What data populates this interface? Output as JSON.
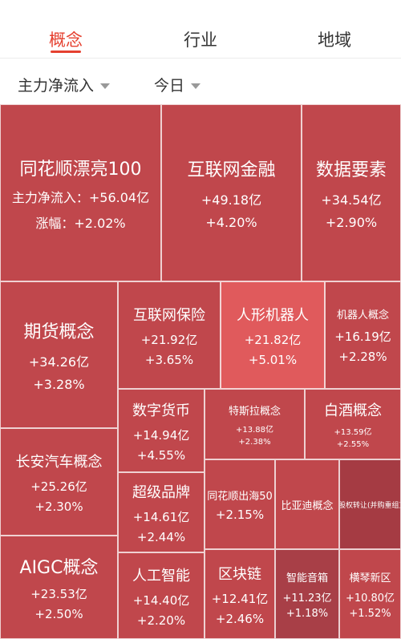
{
  "tabs": {
    "concept": "概念",
    "industry": "行业",
    "region": "地域"
  },
  "filters": {
    "metric": "主力净流入",
    "period": "今日"
  },
  "tiles": [
    {
      "name": "同花顺漂亮100",
      "value": "+56.04亿",
      "change": "+2.02%",
      "value_label": "主力净流入：",
      "change_label": "涨幅："
    },
    {
      "name": "互联网金融",
      "value": "+49.18亿",
      "change": "+4.20%"
    },
    {
      "name": "数据要素",
      "value": "+34.54亿",
      "change": "+2.90%"
    },
    {
      "name": "期货概念",
      "value": "+34.26亿",
      "change": "+3.28%"
    },
    {
      "name": "互联网保险",
      "value": "+21.92亿",
      "change": "+3.65%"
    },
    {
      "name": "人形机器人",
      "value": "+21.82亿",
      "change": "+5.01%"
    },
    {
      "name": "机器人概念",
      "value": "+16.19亿",
      "change": "+2.28%"
    },
    {
      "name": "数字货币",
      "value": "+14.94亿",
      "change": "+4.55%"
    },
    {
      "name": "特斯拉概念",
      "value": "+13.88亿",
      "change": "+2.38%"
    },
    {
      "name": "白酒概念",
      "value": "+13.59亿",
      "change": "+2.55%"
    },
    {
      "name": "长安汽车概念",
      "value": "+25.26亿",
      "change": "+2.30%"
    },
    {
      "name": "超级品牌",
      "value": "+14.61亿",
      "change": "+2.44%"
    },
    {
      "name": "同花顺出海50",
      "value": "",
      "change": "+2.15%"
    },
    {
      "name": "比亚迪概念",
      "value": "",
      "change": ""
    },
    {
      "name": "股权转让(并购重组)",
      "value": "",
      "change": ""
    },
    {
      "name": "AIGC概念",
      "value": "+23.53亿",
      "change": "+2.50%"
    },
    {
      "name": "人工智能",
      "value": "+14.40亿",
      "change": "+2.20%"
    },
    {
      "name": "区块链",
      "value": "+12.41亿",
      "change": "+2.46%"
    },
    {
      "name": "智能音箱",
      "value": "+11.23亿",
      "change": "+1.18%"
    },
    {
      "name": "横琴新区",
      "value": "+10.80亿",
      "change": "+1.52%"
    }
  ],
  "colors": {
    "accent": "#e5402f",
    "tile_default": "#c0474c",
    "tile_highlight": "#e05a5c",
    "tile_dark": "#a53b43"
  }
}
